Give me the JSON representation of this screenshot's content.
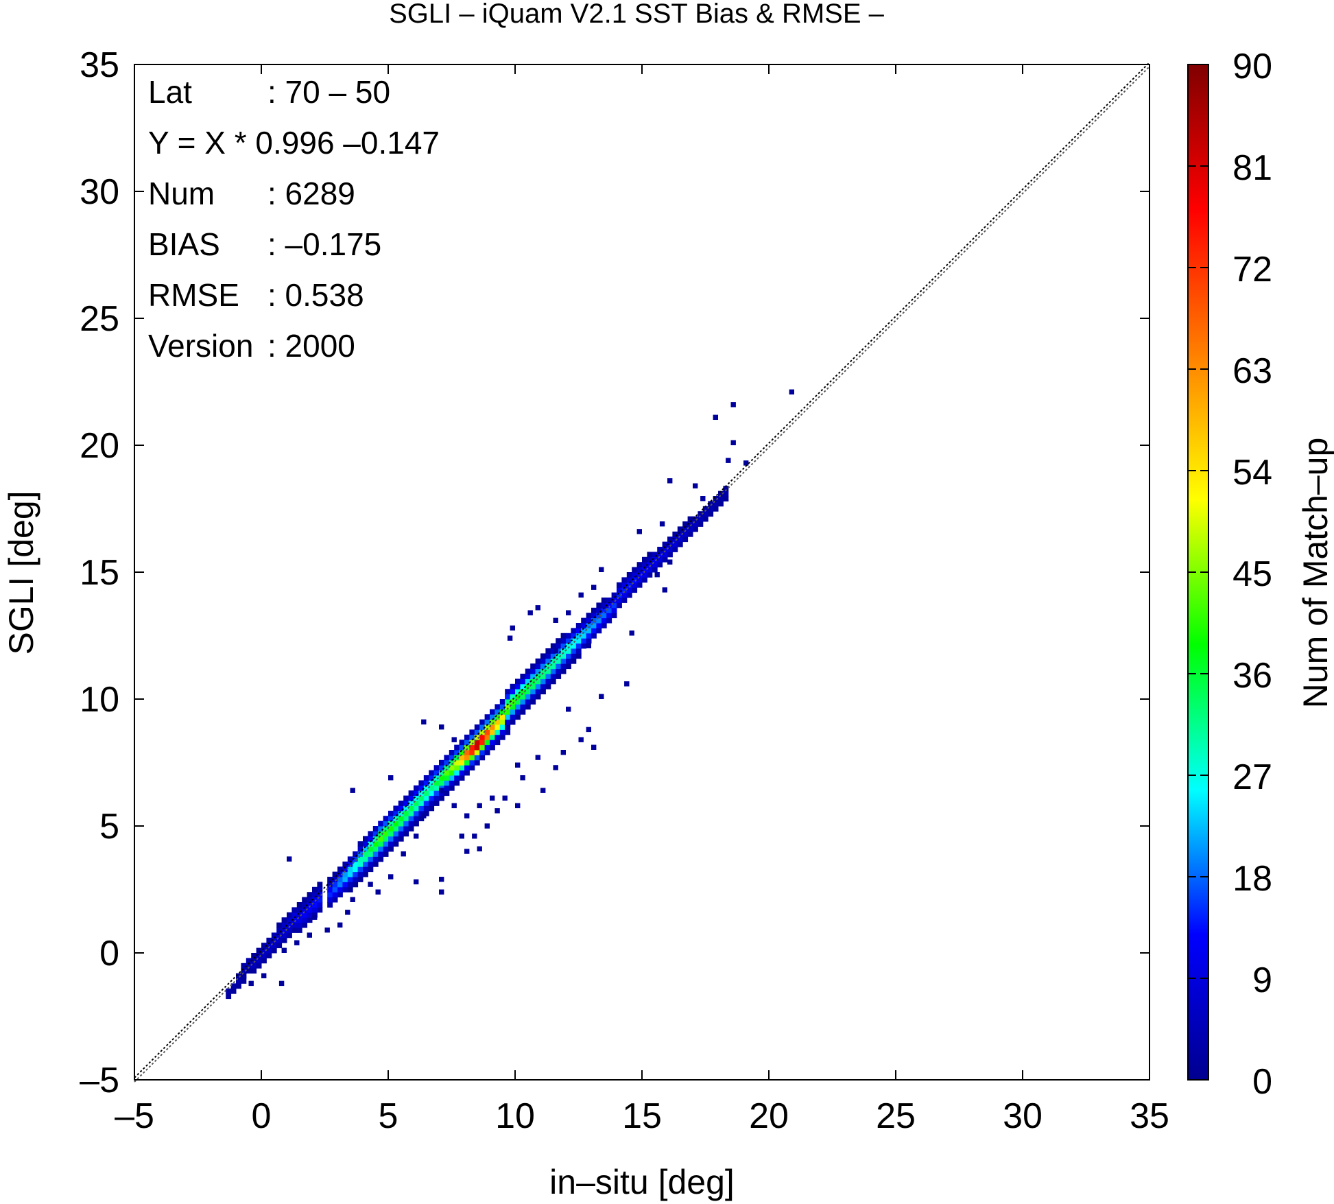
{
  "chart_data": {
    "type": "heatmap",
    "title": "SGLI – iQuam V2.1 SST Bias & RMSE  –",
    "xlabel": "in–situ [deg]",
    "ylabel": "SGLI [deg]",
    "xlim": [
      -5,
      35
    ],
    "ylim": [
      -5,
      35
    ],
    "x_ticks": [
      "–5",
      "0",
      "5",
      "10",
      "15",
      "20",
      "25",
      "30",
      "35"
    ],
    "y_ticks": [
      "–5",
      "0",
      "5",
      "10",
      "15",
      "20",
      "25",
      "30",
      "35"
    ],
    "grid": false,
    "reference_lines": [
      "y = x (1:1)"
    ],
    "colorbar": {
      "label": "Num of Match–up",
      "range": [
        0,
        90
      ],
      "ticks": [
        "0",
        "9",
        "18",
        "27",
        "36",
        "45",
        "54",
        "63",
        "72",
        "81",
        "90"
      ],
      "colors": [
        "#00008f",
        "#0000ff",
        "#00ffff",
        "#00ff00",
        "#ffff00",
        "#ff8000",
        "#ff0000",
        "#800000"
      ]
    },
    "stats": [
      {
        "label": "Lat",
        "value": ": 70 – 50"
      },
      {
        "label": "Y = X * 0.996 –0.147",
        "value": ""
      },
      {
        "label": "Num",
        "value": ": 6289"
      },
      {
        "label": "BIAS",
        "value": ": –0.175"
      },
      {
        "label": "RMSE",
        "value": ": 0.538"
      },
      {
        "label": "Version",
        "value": ": 2000"
      }
    ],
    "density_profile": [
      {
        "x": -1.3,
        "count": 3,
        "spread": 0.35
      },
      {
        "x": -0.5,
        "count": 5,
        "spread": 0.45
      },
      {
        "x": 0.5,
        "count": 8,
        "spread": 0.55
      },
      {
        "x": 1.5,
        "count": 11,
        "spread": 0.65
      },
      {
        "x": 2.5,
        "count": 15,
        "spread": 0.65
      },
      {
        "x": 3.5,
        "count": 28,
        "spread": 0.7
      },
      {
        "x": 4.5,
        "count": 42,
        "spread": 0.8
      },
      {
        "x": 5.5,
        "count": 36,
        "spread": 0.75
      },
      {
        "x": 6.5,
        "count": 32,
        "spread": 0.8
      },
      {
        "x": 7.5,
        "count": 50,
        "spread": 0.75
      },
      {
        "x": 8.3,
        "count": 88,
        "spread": 0.7
      },
      {
        "x": 9.0,
        "count": 60,
        "spread": 0.75
      },
      {
        "x": 10.0,
        "count": 40,
        "spread": 0.75
      },
      {
        "x": 11.0,
        "count": 35,
        "spread": 0.7
      },
      {
        "x": 12.0,
        "count": 30,
        "spread": 0.7
      },
      {
        "x": 13.0,
        "count": 22,
        "spread": 0.65
      },
      {
        "x": 14.0,
        "count": 15,
        "spread": 0.6
      },
      {
        "x": 15.0,
        "count": 13,
        "spread": 0.55
      },
      {
        "x": 16.0,
        "count": 10,
        "spread": 0.5
      },
      {
        "x": 17.0,
        "count": 6,
        "spread": 0.45
      },
      {
        "x": 18.0,
        "count": 3,
        "spread": 0.4
      }
    ],
    "outliers": [
      [
        20.8,
        22.0
      ],
      [
        18.5,
        21.5
      ],
      [
        17.8,
        21.0
      ],
      [
        18.5,
        20.0
      ],
      [
        19.0,
        19.2
      ],
      [
        18.3,
        19.3
      ],
      [
        16.0,
        18.5
      ],
      [
        17.0,
        18.3
      ],
      [
        14.8,
        16.5
      ],
      [
        15.7,
        16.8
      ],
      [
        16.0,
        15.3
      ],
      [
        13.3,
        15.0
      ],
      [
        13.0,
        14.3
      ],
      [
        12.5,
        14.0
      ],
      [
        15.8,
        14.2
      ],
      [
        14.5,
        12.5
      ],
      [
        11.5,
        13.0
      ],
      [
        12.0,
        13.3
      ],
      [
        14.3,
        10.5
      ],
      [
        10.5,
        13.3
      ],
      [
        9.8,
        12.7
      ],
      [
        13.3,
        10.0
      ],
      [
        12.0,
        9.5
      ],
      [
        12.8,
        8.7
      ],
      [
        12.5,
        8.3
      ],
      [
        13.0,
        8.0
      ],
      [
        11.8,
        7.8
      ],
      [
        10.8,
        7.6
      ],
      [
        10.0,
        7.3
      ],
      [
        11.5,
        7.2
      ],
      [
        10.2,
        6.8
      ],
      [
        11.0,
        6.3
      ],
      [
        9.0,
        6.0
      ],
      [
        9.5,
        6.0
      ],
      [
        8.5,
        5.7
      ],
      [
        8.0,
        5.3
      ],
      [
        10.0,
        5.7
      ],
      [
        9.2,
        5.5
      ],
      [
        8.8,
        4.9
      ],
      [
        8.3,
        4.5
      ],
      [
        7.8,
        4.5
      ],
      [
        8.5,
        4.0
      ],
      [
        8.0,
        3.9
      ],
      [
        7.5,
        5.7
      ],
      [
        6.3,
        5.3
      ],
      [
        7.0,
        6.3
      ],
      [
        6.0,
        4.5
      ],
      [
        5.5,
        3.8
      ],
      [
        7.0,
        2.8
      ],
      [
        6.0,
        2.7
      ],
      [
        5.0,
        2.9
      ],
      [
        4.2,
        2.6
      ],
      [
        4.5,
        2.3
      ],
      [
        7.0,
        2.3
      ],
      [
        3.5,
        2.0
      ],
      [
        3.3,
        1.5
      ],
      [
        3.0,
        1.0
      ],
      [
        2.5,
        0.8
      ],
      [
        2.0,
        1.3
      ],
      [
        1.8,
        0.6
      ],
      [
        1.3,
        0.3
      ],
      [
        0.8,
        0.0
      ],
      [
        0.0,
        -1.0
      ],
      [
        -0.5,
        -1.3
      ],
      [
        0.7,
        -1.3
      ],
      [
        1.0,
        3.6
      ],
      [
        3.5,
        6.3
      ],
      [
        5.0,
        6.8
      ],
      [
        9.7,
        12.3
      ],
      [
        7.5,
        8.3
      ],
      [
        7.0,
        8.8
      ],
      [
        6.3,
        9.0
      ],
      [
        11.5,
        11.8
      ],
      [
        12.8,
        12.0
      ],
      [
        15.5,
        14.8
      ],
      [
        17.3,
        17.8
      ],
      [
        10.8,
        13.5
      ]
    ]
  }
}
